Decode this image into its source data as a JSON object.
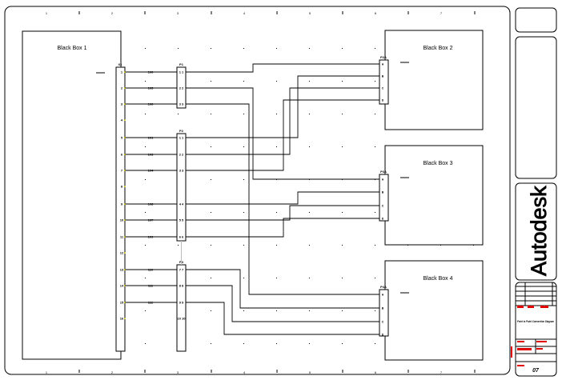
{
  "ruler_numbers": [
    "1",
    "2",
    "3",
    "4",
    "5",
    "6",
    "7"
  ],
  "boxes": [
    {
      "label": "Black Box 1"
    },
    {
      "label": "Black Box 2"
    },
    {
      "label": "Black Box 3"
    },
    {
      "label": "Black Box 4"
    }
  ],
  "terminal_strip": {
    "label": "X1",
    "terminals": [
      "1",
      "2",
      "3",
      "4",
      "5",
      "6",
      "7",
      "8",
      "9",
      "10",
      "11",
      "12",
      "13",
      "14",
      "15",
      "16"
    ]
  },
  "connectors": [
    {
      "label": "P1",
      "pins": [
        "1 1",
        "2 2",
        "3 3"
      ]
    },
    {
      "label": "P2",
      "pins": [
        "1 1",
        "2 2",
        "3 3",
        "4 4",
        "5 5",
        "6 6"
      ]
    },
    {
      "label": "P3",
      "pins": [
        "7 7",
        "8 8",
        "9 9",
        "10 10"
      ]
    },
    {
      "label": "P2A",
      "pins": [
        "A",
        "B",
        "C",
        "D"
      ]
    },
    {
      "label": "P3A",
      "pins": [
        "A",
        "B",
        "C",
        "D"
      ]
    },
    {
      "label": "P4A",
      "pins": [
        "A",
        "B",
        "C",
        "D"
      ]
    }
  ],
  "wire_labels": [
    "100",
    "105",
    "106",
    "101",
    "103",
    "104",
    "108",
    "107",
    "109",
    "110",
    "111",
    "112"
  ],
  "title_block": {
    "logo": "Autodesk",
    "title": "Point to Point Connection Diagram",
    "sheet": "07"
  },
  "colors": {
    "line": "#000000",
    "title_text": "#e00000",
    "terminal_mark": "#e6d800"
  }
}
